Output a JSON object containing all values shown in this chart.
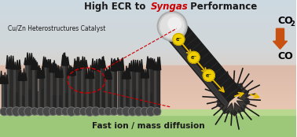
{
  "title_prefix": "High ECR to ",
  "title_syngas": "Syngas",
  "title_suffix": " Performance",
  "label_catalyst": "Cu/Zn Heterostructures Catalyst",
  "label_diffusion": "Fast ion / mass diffusion",
  "title_color": "#1a1a1a",
  "syngas_color": "#cc0000",
  "electron_color": "#f0d000",
  "electron_border": "#c8a800",
  "arrow_color": "#e8b800",
  "co2_arrow_color": "#c85010",
  "dashed_color": "#cc0000",
  "ground_green": "#a8c878",
  "bg_color_top": "#dce8f0",
  "bg_color_mid": "#e8d8cc",
  "bg_color_bot": "#e8c8b0"
}
